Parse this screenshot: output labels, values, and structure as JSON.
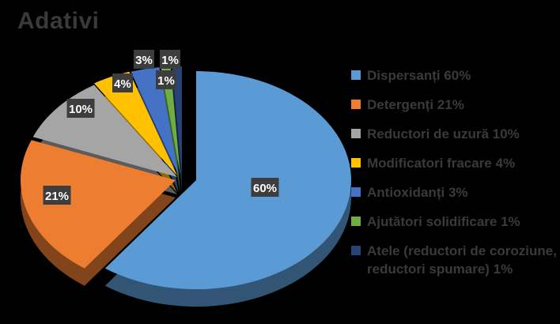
{
  "chart_data": {
    "type": "pie",
    "title": "Adativi",
    "categories": [
      "Dispersanți 60%",
      "Detergenți 21%",
      "Reductori de uzură 10%",
      "Modificatori fracare 4%",
      "Antioxidanți 3%",
      "Ajutători solidificare 1%",
      "Atele (reductori de coroziune, reductori spumare) 1%"
    ],
    "values": [
      60,
      21,
      10,
      4,
      3,
      1,
      1
    ],
    "data_labels": [
      "60%",
      "21%",
      "10%",
      "4%",
      "3%",
      "1%",
      "1%"
    ],
    "colors": [
      "#5b9bd5",
      "#ed7d31",
      "#a5a5a5",
      "#ffc000",
      "#4472c4",
      "#70ad47",
      "#264478"
    ],
    "legend_position": "right",
    "style": "3d-exploded"
  }
}
